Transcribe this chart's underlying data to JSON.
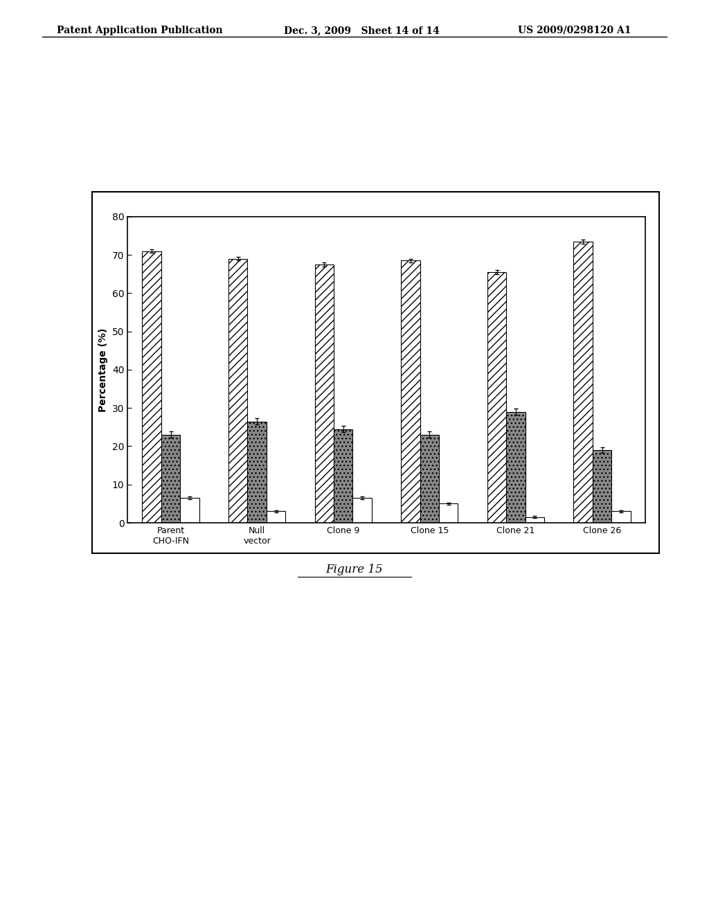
{
  "categories": [
    "Parent\nCHO-IFN",
    "Null\nvector",
    "Clone 9",
    "Clone 15",
    "Clone 21",
    "Clone 26"
  ],
  "bar_groups": {
    "hatched_diagonal": [
      71.0,
      69.0,
      67.5,
      68.5,
      65.5,
      73.5
    ],
    "dark_crosshatch": [
      23.0,
      26.5,
      24.5,
      23.0,
      29.0,
      19.0
    ],
    "white": [
      6.5,
      3.0,
      6.5,
      5.0,
      1.5,
      3.0
    ]
  },
  "errors": {
    "hatched_diagonal": [
      0.5,
      0.5,
      0.5,
      0.5,
      0.5,
      0.5
    ],
    "dark_crosshatch": [
      0.8,
      0.8,
      0.8,
      0.8,
      0.8,
      0.8
    ],
    "white": [
      0.3,
      0.3,
      0.3,
      0.3,
      0.3,
      0.3
    ]
  },
  "ylabel": "Percentage (%)",
  "ylim": [
    0,
    80
  ],
  "yticks": [
    0,
    10,
    20,
    30,
    40,
    50,
    60,
    70,
    80
  ],
  "figure_title": "Figure 15",
  "header_left": "Patent Application Publication",
  "header_mid": "Dec. 3, 2009   Sheet 14 of 14",
  "header_right": "US 2009/0298120 A1",
  "background_color": "#ffffff",
  "bar_width": 0.22
}
